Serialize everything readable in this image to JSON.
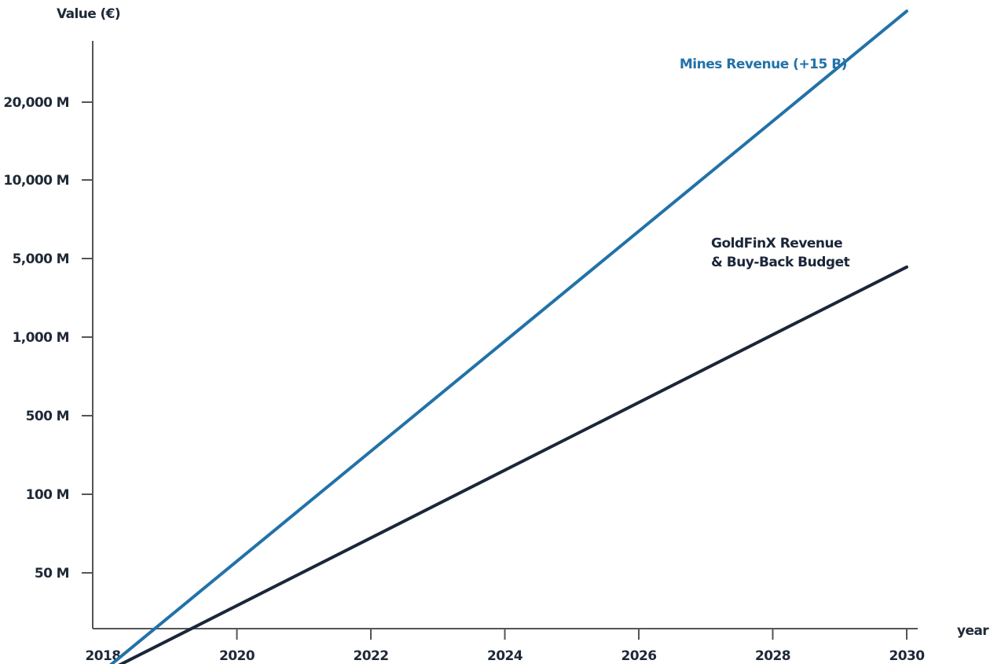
{
  "chart_data": {
    "type": "line",
    "ylabel": "Value (€)",
    "xlabel": "year",
    "scale": "log",
    "x_ticks": [
      "2018",
      "2020",
      "2022",
      "2024",
      "2026",
      "2028",
      "2030"
    ],
    "y_ticks": [
      "50 M",
      "100 M",
      "500 M",
      "1,000 M",
      "5,000 M",
      "10,000 M",
      "20,000 M"
    ],
    "y_tick_values": [
      50,
      100,
      500,
      1000,
      5000,
      10000,
      20000
    ],
    "xlim": [
      2017.85,
      2030.15
    ],
    "series": [
      {
        "name": "Mines Revenue (+15 B)",
        "color": "#2272a8",
        "x": [
          2017.9,
          2030
        ],
        "y": [
          20,
          45000
        ]
      },
      {
        "name": "GoldFinX Revenue & Buy-Back Budget",
        "color": "#1b2639",
        "x": [
          2017.9,
          2030
        ],
        "y": [
          20,
          4200
        ]
      }
    ],
    "labels": [
      {
        "series": 0,
        "lines": [
          "Mines Revenue (+15 B)"
        ]
      },
      {
        "series": 1,
        "lines": [
          "GoldFinX Revenue",
          "& Buy-Back Budget"
        ]
      }
    ],
    "grid": false
  }
}
